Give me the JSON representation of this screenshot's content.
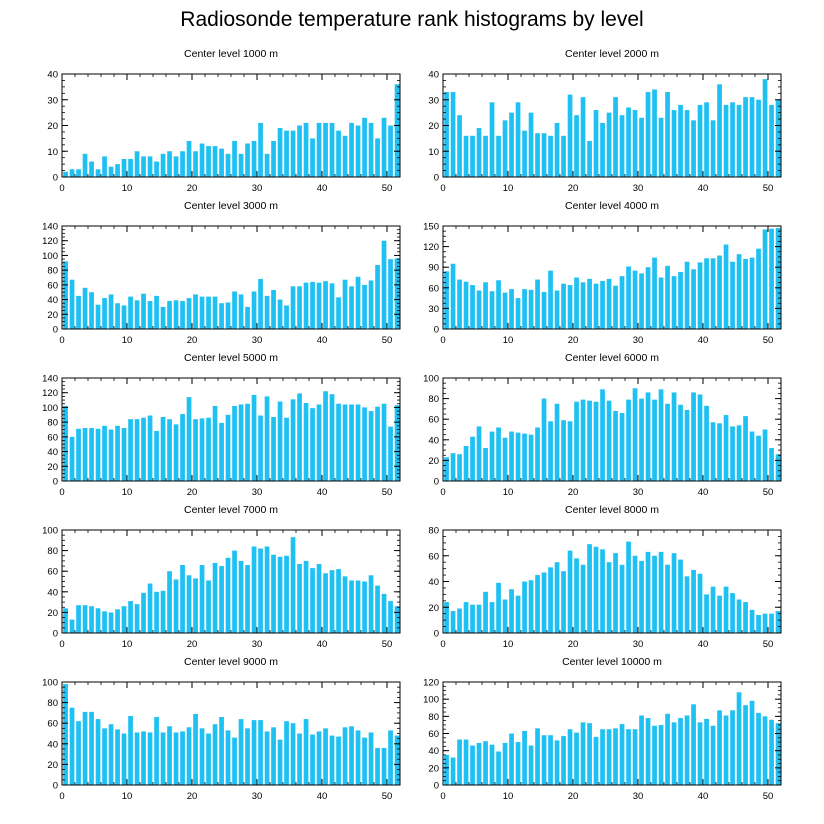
{
  "title": "Radiosonde temperature rank histograms by level",
  "colors": {
    "bar": "#1FC0F2",
    "axis": "#000000",
    "background": "#ffffff"
  },
  "chart_data": [
    {
      "type": "bar",
      "title": "Center level 1000 m",
      "xlim": [
        0,
        52
      ],
      "ylim": [
        0,
        40
      ],
      "xticks": [
        0,
        10,
        20,
        30,
        40,
        50
      ],
      "yticks": [
        0,
        10,
        20,
        30,
        40
      ],
      "values": [
        2,
        3,
        3,
        9,
        6,
        3,
        8,
        4,
        5,
        7,
        7,
        10,
        8,
        8,
        6,
        9,
        10,
        8,
        10,
        14,
        10,
        13,
        12,
        12,
        11,
        9,
        14,
        9,
        13,
        14,
        21,
        9,
        14,
        19,
        18,
        18,
        20,
        21,
        15,
        21,
        21,
        21,
        18,
        16,
        21,
        20,
        23,
        21,
        15,
        23,
        20,
        36
      ]
    },
    {
      "type": "bar",
      "title": "Center level 2000 m",
      "xlim": [
        0,
        52
      ],
      "ylim": [
        0,
        40
      ],
      "xticks": [
        0,
        10,
        20,
        30,
        40,
        50
      ],
      "yticks": [
        0,
        10,
        20,
        30,
        40
      ],
      "values": [
        33,
        33,
        24,
        16,
        16,
        19,
        16,
        29,
        16,
        22,
        25,
        29,
        18,
        25,
        17,
        17,
        16,
        21,
        16,
        32,
        24,
        31,
        14,
        26,
        21,
        25,
        31,
        24,
        27,
        26,
        23,
        33,
        34,
        23,
        33,
        26,
        28,
        26,
        22,
        28,
        29,
        22,
        36,
        28,
        29,
        28,
        31,
        31,
        30,
        38,
        28,
        30
      ]
    },
    {
      "type": "bar",
      "title": "Center level 3000 m",
      "xlim": [
        0,
        52
      ],
      "ylim": [
        0,
        140
      ],
      "xticks": [
        0,
        10,
        20,
        30,
        40,
        50
      ],
      "yticks": [
        0,
        20,
        40,
        60,
        80,
        100,
        120,
        140
      ],
      "values": [
        92,
        67,
        45,
        56,
        50,
        33,
        42,
        47,
        35,
        32,
        44,
        39,
        48,
        38,
        45,
        30,
        38,
        39,
        38,
        42,
        47,
        44,
        44,
        44,
        35,
        36,
        51,
        47,
        30,
        51,
        68,
        45,
        53,
        40,
        32,
        58,
        58,
        63,
        64,
        63,
        65,
        62,
        43,
        67,
        58,
        71,
        60,
        66,
        87,
        120,
        95,
        96
      ]
    },
    {
      "type": "bar",
      "title": "Center level 4000 m",
      "xlim": [
        0,
        52
      ],
      "ylim": [
        0,
        150
      ],
      "xticks": [
        0,
        10,
        20,
        30,
        40,
        50
      ],
      "yticks": [
        0,
        30,
        60,
        90,
        120,
        150
      ],
      "values": [
        84,
        95,
        72,
        69,
        64,
        56,
        68,
        55,
        71,
        53,
        58,
        45,
        58,
        57,
        72,
        54,
        85,
        56,
        66,
        64,
        75,
        68,
        73,
        66,
        70,
        73,
        63,
        77,
        91,
        85,
        81,
        90,
        104,
        75,
        92,
        77,
        83,
        98,
        87,
        97,
        103,
        103,
        107,
        123,
        98,
        109,
        102,
        104,
        117,
        145,
        146,
        147
      ]
    },
    {
      "type": "bar",
      "title": "Center level 5000 m",
      "xlim": [
        0,
        52
      ],
      "ylim": [
        0,
        140
      ],
      "xticks": [
        0,
        10,
        20,
        30,
        40,
        50
      ],
      "yticks": [
        0,
        20,
        40,
        60,
        80,
        100,
        120,
        140
      ],
      "values": [
        102,
        60,
        71,
        72,
        72,
        71,
        75,
        70,
        75,
        72,
        84,
        84,
        86,
        89,
        68,
        87,
        84,
        77,
        91,
        114,
        84,
        85,
        86,
        102,
        79,
        90,
        102,
        104,
        105,
        117,
        89,
        115,
        87,
        108,
        86,
        111,
        119,
        106,
        99,
        104,
        122,
        118,
        105,
        104,
        104,
        104,
        100,
        95,
        101,
        105,
        74,
        103
      ]
    },
    {
      "type": "bar",
      "title": "Center level 6000 m",
      "xlim": [
        0,
        52
      ],
      "ylim": [
        0,
        100
      ],
      "xticks": [
        0,
        10,
        20,
        30,
        40,
        50
      ],
      "yticks": [
        0,
        20,
        40,
        60,
        80,
        100
      ],
      "values": [
        23,
        27,
        26,
        34,
        43,
        53,
        32,
        48,
        52,
        42,
        48,
        47,
        46,
        45,
        52,
        80,
        58,
        75,
        59,
        58,
        77,
        79,
        78,
        77,
        89,
        78,
        68,
        66,
        79,
        90,
        80,
        86,
        79,
        89,
        75,
        86,
        74,
        69,
        86,
        84,
        73,
        57,
        56,
        64,
        53,
        54,
        63,
        48,
        44,
        50,
        32,
        26
      ]
    },
    {
      "type": "bar",
      "title": "Center level 7000 m",
      "xlim": [
        0,
        52
      ],
      "ylim": [
        0,
        100
      ],
      "xticks": [
        0,
        10,
        20,
        30,
        40,
        50
      ],
      "yticks": [
        0,
        20,
        40,
        60,
        80,
        100
      ],
      "values": [
        24,
        13,
        27,
        27,
        26,
        24,
        21,
        20,
        23,
        26,
        31,
        28,
        39,
        48,
        40,
        41,
        60,
        52,
        66,
        56,
        53,
        66,
        51,
        68,
        65,
        73,
        80,
        70,
        66,
        84,
        82,
        84,
        76,
        74,
        75,
        93,
        67,
        70,
        63,
        67,
        58,
        61,
        62,
        55,
        51,
        51,
        50,
        56,
        46,
        38,
        31,
        26
      ]
    },
    {
      "type": "bar",
      "title": "Center level 8000 m",
      "xlim": [
        0,
        52
      ],
      "ylim": [
        0,
        80
      ],
      "xticks": [
        0,
        10,
        20,
        30,
        40,
        50
      ],
      "yticks": [
        0,
        20,
        40,
        60,
        80
      ],
      "values": [
        24,
        17,
        19,
        24,
        22,
        22,
        32,
        24,
        39,
        26,
        34,
        29,
        40,
        41,
        45,
        47,
        51,
        55,
        48,
        64,
        58,
        53,
        69,
        67,
        65,
        55,
        62,
        53,
        71,
        60,
        56,
        63,
        60,
        63,
        53,
        62,
        57,
        44,
        49,
        46,
        30,
        36,
        29,
        36,
        31,
        26,
        24,
        18,
        14,
        15,
        15,
        17
      ]
    },
    {
      "type": "bar",
      "title": "Center level 9000 m",
      "xlim": [
        0,
        52
      ],
      "ylim": [
        0,
        100
      ],
      "xticks": [
        0,
        10,
        20,
        30,
        40,
        50
      ],
      "yticks": [
        0,
        20,
        40,
        60,
        80,
        100
      ],
      "values": [
        98,
        75,
        62,
        71,
        71,
        64,
        55,
        59,
        54,
        50,
        67,
        51,
        52,
        51,
        66,
        51,
        57,
        51,
        52,
        56,
        69,
        55,
        50,
        59,
        66,
        53,
        46,
        64,
        55,
        63,
        63,
        52,
        56,
        44,
        62,
        60,
        50,
        64,
        49,
        52,
        55,
        48,
        47,
        56,
        57,
        53,
        46,
        51,
        36,
        36,
        53,
        48
      ]
    },
    {
      "type": "bar",
      "title": "Center level 10000 m",
      "xlim": [
        0,
        52
      ],
      "ylim": [
        0,
        120
      ],
      "xticks": [
        0,
        10,
        20,
        30,
        40,
        50
      ],
      "yticks": [
        0,
        20,
        40,
        60,
        80,
        100,
        120
      ],
      "values": [
        35,
        32,
        53,
        53,
        46,
        49,
        51,
        47,
        39,
        49,
        60,
        50,
        63,
        46,
        66,
        58,
        58,
        52,
        57,
        65,
        61,
        73,
        72,
        56,
        65,
        65,
        66,
        71,
        65,
        65,
        81,
        78,
        69,
        70,
        83,
        73,
        78,
        81,
        94,
        73,
        77,
        69,
        87,
        81,
        87,
        108,
        93,
        98,
        84,
        80,
        76,
        72
      ]
    }
  ]
}
